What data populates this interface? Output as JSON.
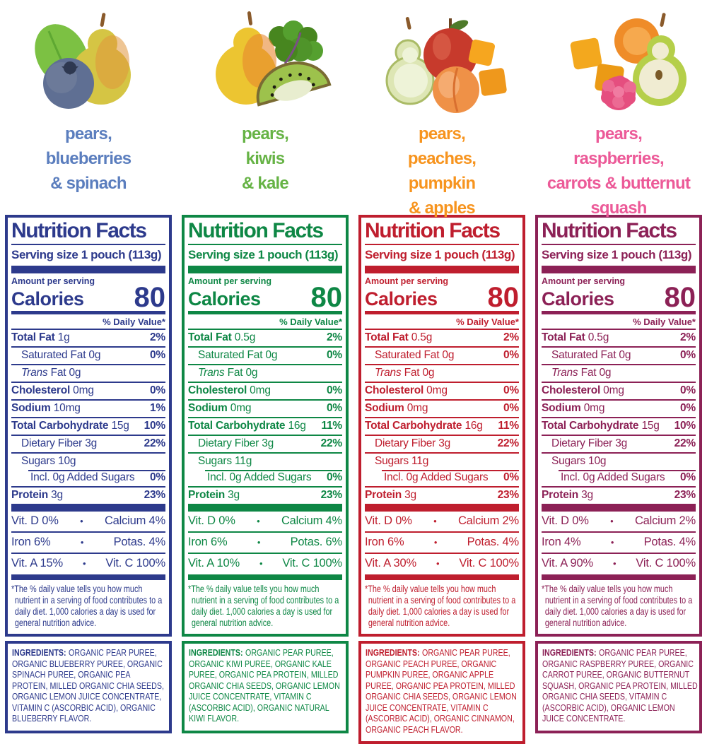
{
  "shared": {
    "bullet": "•"
  },
  "panels": [
    {
      "id": "pears-blueberries-spinach",
      "colors": {
        "accent": "#2d3a8c",
        "flavor_text": "#5b7ebe"
      },
      "image_items": [
        "spinach-leaf",
        "pear",
        "blueberry"
      ],
      "flavor_lines": [
        "pears,",
        "blueberries",
        "& spinach"
      ],
      "label": {
        "title": "Nutrition Facts",
        "serving_size": "Serving size 1 pouch (113g)",
        "amount_per_serving": "Amount per serving",
        "calories_label": "Calories",
        "calories_value": "80",
        "daily_value_header": "% Daily Value*",
        "rows": [
          {
            "name": "Total Fat",
            "amount": "1g",
            "dv": "2%",
            "style": "bold",
            "indent": 0
          },
          {
            "name": "Saturated Fat",
            "amount": "0g",
            "dv": "0%",
            "style": "plain",
            "indent": 1
          },
          {
            "name": "Trans",
            "amount": "Fat 0g",
            "dv": "",
            "style": "italic",
            "indent": 1
          },
          {
            "name": "Cholesterol",
            "amount": "0mg",
            "dv": "0%",
            "style": "bold",
            "indent": 0
          },
          {
            "name": "Sodium",
            "amount": "10mg",
            "dv": "1%",
            "style": "bold",
            "indent": 0
          },
          {
            "name": "Total Carbohydrate",
            "amount": "15g",
            "dv": "10%",
            "style": "bold",
            "indent": 0
          },
          {
            "name": "Dietary Fiber",
            "amount": "3g",
            "dv": "22%",
            "style": "plain",
            "indent": 1
          },
          {
            "name": "Sugars",
            "amount": "10g",
            "dv": "",
            "style": "plain",
            "indent": 1
          },
          {
            "name": "Incl. 0g Added Sugars",
            "amount": "",
            "dv": "0%",
            "style": "plain",
            "indent": 2,
            "inset_rule": true
          },
          {
            "name": "Protein",
            "amount": "3g",
            "dv": "23%",
            "style": "bold",
            "indent": 0
          }
        ],
        "vitamins": [
          {
            "left": "Vit. D 0%",
            "right": "Calcium 4%"
          },
          {
            "left": "Iron 6%",
            "right": "Potas. 4%"
          },
          {
            "left": "Vit. A 15%",
            "right": "Vit. C 100%"
          }
        ],
        "footnote": "*The % daily value tells you how much nutrient in a serving of food contributes to a daily diet. 1,000 calories a day is used for general nutrition advice."
      },
      "ingredients_label": "INGREDIENTS:",
      "ingredients_text": "ORGANIC PEAR PUREE, ORGANIC BLUEBERRY PUREE, ORGANIC SPINACH PUREE, ORGANIC PEA PROTEIN, MILLED ORGANIC CHIA SEEDS, ORGANIC LEMON JUICE CONCENTRATE, VITAMIN C (ASCORBIC ACID), ORGANIC BLUEBERRY FLAVOR."
    },
    {
      "id": "pears-kiwis-kale",
      "colors": {
        "accent": "#0e8745",
        "flavor_text": "#66b345"
      },
      "image_items": [
        "pear",
        "kale-leaf",
        "kiwi-slice"
      ],
      "flavor_lines": [
        "pears,",
        "kiwis",
        "& kale"
      ],
      "label": {
        "title": "Nutrition Facts",
        "serving_size": "Serving size 1 pouch (113g)",
        "amount_per_serving": "Amount per serving",
        "calories_label": "Calories",
        "calories_value": "80",
        "daily_value_header": "% Daily Value*",
        "rows": [
          {
            "name": "Total Fat",
            "amount": "0.5g",
            "dv": "2%",
            "style": "bold",
            "indent": 0
          },
          {
            "name": "Saturated Fat",
            "amount": "0g",
            "dv": "0%",
            "style": "plain",
            "indent": 1
          },
          {
            "name": "Trans",
            "amount": "Fat 0g",
            "dv": "",
            "style": "italic",
            "indent": 1
          },
          {
            "name": "Cholesterol",
            "amount": "0mg",
            "dv": "0%",
            "style": "bold",
            "indent": 0
          },
          {
            "name": "Sodium",
            "amount": "0mg",
            "dv": "0%",
            "style": "bold",
            "indent": 0
          },
          {
            "name": "Total Carbohydrate",
            "amount": "16g",
            "dv": "11%",
            "style": "bold",
            "indent": 0
          },
          {
            "name": "Dietary Fiber",
            "amount": "3g",
            "dv": "22%",
            "style": "plain",
            "indent": 1
          },
          {
            "name": "Sugars",
            "amount": "11g",
            "dv": "",
            "style": "plain",
            "indent": 1
          },
          {
            "name": "Incl. 0g Added Sugars",
            "amount": "",
            "dv": "0%",
            "style": "plain",
            "indent": 2,
            "inset_rule": true
          },
          {
            "name": "Protein",
            "amount": "3g",
            "dv": "23%",
            "style": "bold",
            "indent": 0
          }
        ],
        "vitamins": [
          {
            "left": "Vit. D 0%",
            "right": "Calcium 4%"
          },
          {
            "left": "Iron 6%",
            "right": "Potas. 6%"
          },
          {
            "left": "Vit. A 10%",
            "right": "Vit. C 100%"
          }
        ],
        "footnote": "*The % daily value tells you how much nutrient in a serving of food contributes to a daily diet. 1,000 calories a day is used for general nutrition advice."
      },
      "ingredients_label": "INGREDIENTS:",
      "ingredients_text": "ORGANIC PEAR PUREE, ORGANIC KIWI PUREE, ORGANIC KALE PUREE, ORGANIC PEA PROTEIN, MILLED ORGANIC CHIA SEEDS, ORGANIC LEMON JUICE CONCENTRATE, VITAMIN C (ASCORBIC ACID), ORGANIC NATURAL KIWI FLAVOR."
    },
    {
      "id": "pears-peaches-pumpkin-apples",
      "colors": {
        "accent": "#bf1e2e",
        "flavor_text": "#f7941e"
      },
      "image_items": [
        "pear-slice",
        "apple",
        "peach",
        "pumpkin-cubes"
      ],
      "flavor_lines": [
        "pears,",
        "peaches,",
        "pumpkin",
        "& apples"
      ],
      "label": {
        "title": "Nutrition Facts",
        "serving_size": "Serving size 1 pouch (113g)",
        "amount_per_serving": "Amount per serving",
        "calories_label": "Calories",
        "calories_value": "80",
        "daily_value_header": "% Daily Value*",
        "rows": [
          {
            "name": "Total Fat",
            "amount": "0.5g",
            "dv": "2%",
            "style": "bold",
            "indent": 0
          },
          {
            "name": "Saturated Fat",
            "amount": "0g",
            "dv": "0%",
            "style": "plain",
            "indent": 1
          },
          {
            "name": "Trans",
            "amount": "Fat 0g",
            "dv": "",
            "style": "italic",
            "indent": 1
          },
          {
            "name": "Cholesterol",
            "amount": "0mg",
            "dv": "0%",
            "style": "bold",
            "indent": 0
          },
          {
            "name": "Sodium",
            "amount": "0mg",
            "dv": "0%",
            "style": "bold",
            "indent": 0
          },
          {
            "name": "Total Carbohydrate",
            "amount": "16g",
            "dv": "11%",
            "style": "bold",
            "indent": 0
          },
          {
            "name": "Dietary Fiber",
            "amount": "3g",
            "dv": "22%",
            "style": "plain",
            "indent": 1
          },
          {
            "name": "Sugars",
            "amount": "11g",
            "dv": "",
            "style": "plain",
            "indent": 1
          },
          {
            "name": "Incl. 0g Added Sugars",
            "amount": "",
            "dv": "0%",
            "style": "plain",
            "indent": 2,
            "inset_rule": true
          },
          {
            "name": "Protein",
            "amount": "3g",
            "dv": "23%",
            "style": "bold",
            "indent": 0
          }
        ],
        "vitamins": [
          {
            "left": "Vit. D 0%",
            "right": "Calcium 2%"
          },
          {
            "left": "Iron 6%",
            "right": "Potas. 4%"
          },
          {
            "left": "Vit. A 30%",
            "right": "Vit. C 100%"
          }
        ],
        "footnote": "*The % daily value tells you how much nutrient in a serving of food contributes to a daily diet. 1,000 calories a day is used for general nutrition advice."
      },
      "ingredients_label": "INGREDIENTS:",
      "ingredients_text": "ORGANIC PEAR PUREE, ORGANIC PEACH PUREE, ORGANIC PUMPKIN PUREE, ORGANIC APPLE PUREE, ORGANIC PEA PROTEIN, MILLED ORGANIC CHIA SEEDS, ORGANIC LEMON JUICE CONCENTRATE, VITAMIN C (ASCORBIC ACID), ORGANIC CINNAMON, ORGANIC PEACH FLAVOR."
    },
    {
      "id": "pears-raspberries-carrots-butternut-squash",
      "colors": {
        "accent": "#8c2156",
        "flavor_text": "#ec5a98"
      },
      "image_items": [
        "butternut-squash-cubes",
        "carrot-slice",
        "pear-half",
        "raspberry"
      ],
      "flavor_lines": [
        "pears,",
        "raspberries,",
        "carrots & butternut",
        "squash"
      ],
      "label": {
        "title": "Nutrition Facts",
        "serving_size": "Serving size 1 pouch (113g)",
        "amount_per_serving": "Amount per serving",
        "calories_label": "Calories",
        "calories_value": "80",
        "daily_value_header": "% Daily Value*",
        "rows": [
          {
            "name": "Total Fat",
            "amount": "0.5g",
            "dv": "2%",
            "style": "bold",
            "indent": 0
          },
          {
            "name": "Saturated Fat",
            "amount": "0g",
            "dv": "0%",
            "style": "plain",
            "indent": 1
          },
          {
            "name": "Trans",
            "amount": "Fat 0g",
            "dv": "",
            "style": "italic",
            "indent": 1
          },
          {
            "name": "Cholesterol",
            "amount": "0mg",
            "dv": "0%",
            "style": "bold",
            "indent": 0
          },
          {
            "name": "Sodium",
            "amount": "0mg",
            "dv": "0%",
            "style": "bold",
            "indent": 0
          },
          {
            "name": "Total Carbohydrate",
            "amount": "15g",
            "dv": "10%",
            "style": "bold",
            "indent": 0
          },
          {
            "name": "Dietary Fiber",
            "amount": "3g",
            "dv": "22%",
            "style": "plain",
            "indent": 1
          },
          {
            "name": "Sugars",
            "amount": "10g",
            "dv": "",
            "style": "plain",
            "indent": 1
          },
          {
            "name": "Incl. 0g Added Sugars",
            "amount": "",
            "dv": "0%",
            "style": "plain",
            "indent": 2,
            "inset_rule": true
          },
          {
            "name": "Protein",
            "amount": "3g",
            "dv": "23%",
            "style": "bold",
            "indent": 0
          }
        ],
        "vitamins": [
          {
            "left": "Vit. D 0%",
            "right": "Calcium 2%"
          },
          {
            "left": "Iron 4%",
            "right": "Potas. 4%"
          },
          {
            "left": "Vit. A 90%",
            "right": "Vit. C 100%"
          }
        ],
        "footnote": "*The % daily value tells you how much nutrient in a serving of food contributes to a daily diet. 1,000 calories a day is used for general nutrition advice."
      },
      "ingredients_label": "INGREDIENTS:",
      "ingredients_text": "ORGANIC PEAR PUREE, ORGANIC RASPBERRY PUREE, ORGANIC CARROT PUREE, ORGANIC BUTTERNUT SQUASH, ORGANIC PEA PROTEIN, MILLED ORGANIC CHIA SEEDS, VITAMIN C (ASCORBIC ACID), ORGANIC LEMON JUICE CONCENTRATE."
    }
  ]
}
